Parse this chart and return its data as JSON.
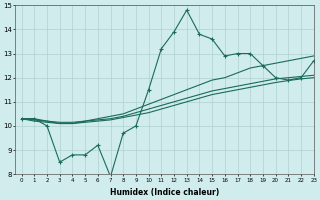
{
  "x": [
    0,
    1,
    2,
    3,
    4,
    5,
    6,
    7,
    8,
    9,
    10,
    11,
    12,
    13,
    14,
    15,
    16,
    17,
    18,
    19,
    20,
    21,
    22,
    23
  ],
  "line_jagged": [
    10.3,
    10.3,
    10.0,
    8.5,
    8.8,
    8.8,
    9.2,
    7.9,
    9.7,
    10.0,
    11.5,
    13.2,
    13.9,
    14.8,
    13.8,
    13.6,
    12.9,
    13.0,
    13.0,
    12.5,
    12.0,
    11.9,
    12.0,
    12.7
  ],
  "line_upper": [
    10.3,
    10.3,
    10.2,
    10.1,
    10.1,
    10.2,
    10.3,
    10.4,
    10.5,
    10.7,
    10.9,
    11.1,
    11.3,
    11.5,
    11.7,
    11.9,
    12.0,
    12.2,
    12.4,
    12.5,
    12.6,
    12.7,
    12.8,
    12.9
  ],
  "line_mid": [
    10.3,
    10.25,
    10.2,
    10.15,
    10.15,
    10.2,
    10.25,
    10.3,
    10.4,
    10.55,
    10.7,
    10.85,
    11.0,
    11.15,
    11.3,
    11.45,
    11.55,
    11.65,
    11.75,
    11.85,
    11.95,
    12.0,
    12.05,
    12.1
  ],
  "line_lower": [
    10.3,
    10.2,
    10.15,
    10.1,
    10.1,
    10.15,
    10.2,
    10.25,
    10.35,
    10.45,
    10.55,
    10.7,
    10.85,
    11.0,
    11.15,
    11.3,
    11.4,
    11.5,
    11.6,
    11.7,
    11.8,
    11.88,
    11.95,
    12.0
  ],
  "line_color": "#1a6b5a",
  "bg_color": "#d0ecec",
  "grid_color": "#b0d0d0",
  "xlabel": "Humidex (Indice chaleur)",
  "ylim": [
    8,
    15
  ],
  "xlim": [
    -0.5,
    23
  ]
}
